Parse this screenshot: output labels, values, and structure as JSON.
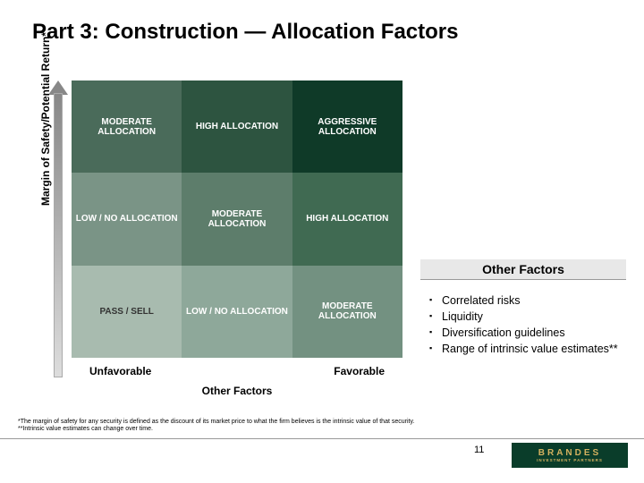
{
  "title": "Part 3: Construction — Allocation Factors",
  "matrix": {
    "cells": [
      [
        "MODERATE ALLOCATION",
        "HIGH ALLOCATION",
        "AGGRESSIVE ALLOCATION"
      ],
      [
        "LOW / NO ALLOCATION",
        "MODERATE ALLOCATION",
        "HIGH ALLOCATION"
      ],
      [
        "PASS / SELL",
        "LOW / NO ALLOCATION",
        "MODERATE ALLOCATION"
      ]
    ],
    "bg_colors": [
      [
        "#4a6b5a",
        "#2d5440",
        "#0f3a28"
      ],
      [
        "#7a9486",
        "#5d7d6b",
        "#406a52"
      ],
      [
        "#a8bbaf",
        "#8ea89a",
        "#739181"
      ]
    ],
    "text_colors": [
      [
        "#ffffff",
        "#ffffff",
        "#ffffff"
      ],
      [
        "#ffffff",
        "#ffffff",
        "#ffffff"
      ],
      [
        "#333333",
        "#ffffff",
        "#ffffff"
      ]
    ]
  },
  "y_axis_label": "Margin of Safety/Potential Return*",
  "x_axis": {
    "left": "Unfavorable",
    "right": "Favorable",
    "center": "Other Factors"
  },
  "side": {
    "title": "Other Factors",
    "items": [
      "Correlated risks",
      "Liquidity",
      "Diversification guidelines",
      "Range of intrinsic value estimates**"
    ]
  },
  "footnotes": [
    "*The margin of safety for any security is defined as the discount of its market price to what the firm believes is the intrinsic value of that security.",
    "**Intrinsic value estimates can change over time."
  ],
  "page_number": "11",
  "logo": {
    "name": "BRANDES",
    "sub": "INVESTMENT PARTNERS"
  }
}
